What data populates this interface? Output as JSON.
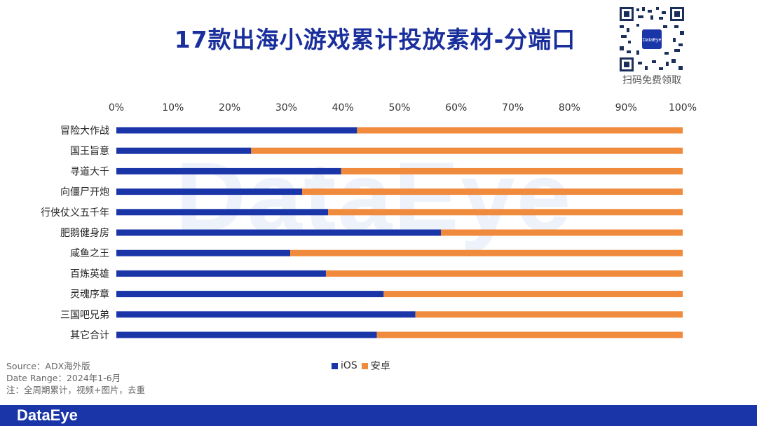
{
  "title": "17款出海小游戏累计投放素材-分端口",
  "watermark": "DataEye",
  "qr_caption": "扫码免费领取",
  "qr_logo_text": "DataEye",
  "colors": {
    "ios": "#1a35a8",
    "android": "#f08a3c",
    "title": "#1a2f9c",
    "footer": "#1a35a8"
  },
  "legend": {
    "ios": "iOS",
    "android": "安卓"
  },
  "notes": {
    "source": "Source：ADX海外版",
    "date_range": "Date Range：2024年1-6月",
    "note": "注：全周期累计，视频+图片，去重"
  },
  "footer": {
    "brand": "DataEye"
  },
  "chart_data": {
    "type": "bar",
    "orientation": "horizontal",
    "stacked": true,
    "percent": true,
    "x_ticks": [
      "0%",
      "10%",
      "20%",
      "30%",
      "40%",
      "50%",
      "60%",
      "70%",
      "80%",
      "90%",
      "100%"
    ],
    "xlim": [
      0,
      100
    ],
    "categories": [
      "冒险大作战",
      "国王旨意",
      "寻道大千",
      "向僵尸开炮",
      "行侠仗义五千年",
      "肥鹅健身房",
      "咸鱼之王",
      "百炼英雄",
      "灵魂序章",
      "三国吧兄弟",
      "其它合计"
    ],
    "series": [
      {
        "name": "iOS",
        "values": [
          42.5,
          23.8,
          39.7,
          32.8,
          37.4,
          57.3,
          30.7,
          37.0,
          47.2,
          52.8,
          46.0
        ]
      },
      {
        "name": "安卓",
        "values": [
          57.5,
          76.2,
          60.3,
          67.2,
          62.6,
          42.7,
          69.3,
          63.0,
          52.8,
          47.2,
          54.0
        ]
      }
    ]
  }
}
